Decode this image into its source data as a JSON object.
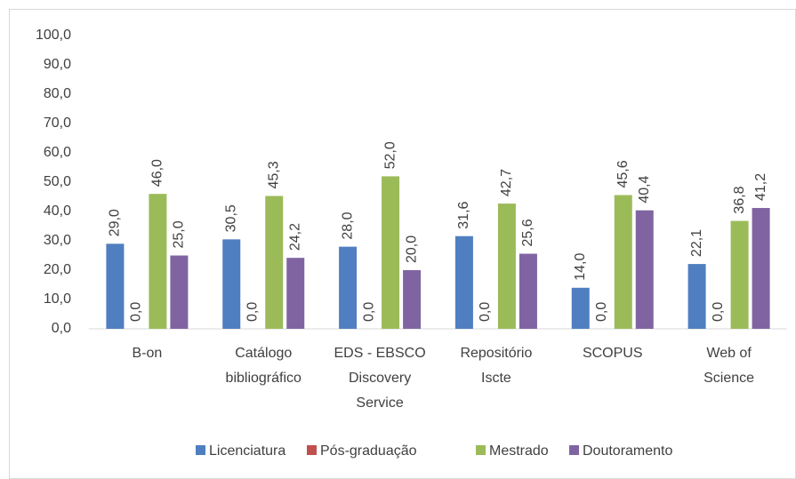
{
  "chart_data": {
    "type": "bar",
    "categories": [
      "B-on",
      "Catálogo bibliográfico",
      "EDS - EBSCO Discovery Service",
      "Repositório Iscte",
      "SCOPUS",
      "Web of Science"
    ],
    "series": [
      {
        "name": "Licenciatura",
        "color": "#4f7fc0",
        "values": [
          29.0,
          30.5,
          28.0,
          31.6,
          14.0,
          22.1
        ],
        "value_labels": [
          "29,0",
          "30,5",
          "28,0",
          "31,6",
          "14,0",
          "22,1"
        ]
      },
      {
        "name": "Pós-graduação",
        "color": "#c0504d",
        "values": [
          0,
          0,
          0,
          0,
          0,
          0
        ],
        "value_labels": [
          "0,0",
          "0,0",
          "0,0",
          "0,0",
          "0,0",
          "0,0"
        ]
      },
      {
        "name": "Mestrado",
        "color": "#9bbb59",
        "values": [
          46.0,
          45.3,
          52.0,
          42.7,
          45.6,
          36.8
        ],
        "value_labels": [
          "46,0",
          "45,3",
          "52,0",
          "42,7",
          "45,6",
          "36,8"
        ]
      },
      {
        "name": "Doutoramento",
        "color": "#8064a2",
        "values": [
          25.0,
          24.2,
          20.0,
          25.6,
          40.4,
          41.2
        ],
        "value_labels": [
          "25,0",
          "24,2",
          "20,0",
          "25,6",
          "40,4",
          "41,2"
        ]
      }
    ],
    "ylim": [
      0,
      100
    ],
    "yticks": [
      {
        "value": 0,
        "label": "0,0"
      },
      {
        "value": 10,
        "label": "10,0"
      },
      {
        "value": 20,
        "label": "20,0"
      },
      {
        "value": 30,
        "label": "30,0"
      },
      {
        "value": 40,
        "label": "40,0"
      },
      {
        "value": 50,
        "label": "50,0"
      },
      {
        "value": 60,
        "label": "60,0"
      },
      {
        "value": 70,
        "label": "70,0"
      },
      {
        "value": 80,
        "label": "80,0"
      },
      {
        "value": 90,
        "label": "90,0"
      },
      {
        "value": 100,
        "label": "100,0"
      }
    ],
    "legend": "bottom"
  }
}
